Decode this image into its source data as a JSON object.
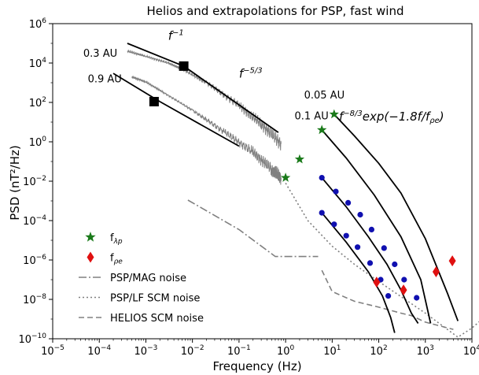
{
  "chart_data": {
    "type": "line",
    "title": "Helios and extrapolations for PSP, fast wind",
    "xlabel": "Frequency (Hz)",
    "ylabel": "PSD (nT²/Hz)",
    "x_scale": "log",
    "y_scale": "log",
    "xlim": [
      1e-05,
      10000.0
    ],
    "ylim": [
      1e-10,
      1000000.0
    ],
    "x_ticks": [
      {
        "value": 1e-05,
        "base": "10",
        "exp": "−5"
      },
      {
        "value": 0.0001,
        "base": "10",
        "exp": "−4"
      },
      {
        "value": 0.001,
        "base": "10",
        "exp": "−3"
      },
      {
        "value": 0.01,
        "base": "10",
        "exp": "−2"
      },
      {
        "value": 0.1,
        "base": "10",
        "exp": "−1"
      },
      {
        "value": 1.0,
        "base": "10",
        "exp": "0"
      },
      {
        "value": 10.0,
        "base": "10",
        "exp": "1"
      },
      {
        "value": 100.0,
        "base": "10",
        "exp": "2"
      },
      {
        "value": 1000.0,
        "base": "10",
        "exp": "3"
      },
      {
        "value": 10000.0,
        "base": "10",
        "exp": "4"
      }
    ],
    "y_ticks": [
      {
        "value": 1e-10,
        "base": "10",
        "exp": "−10"
      },
      {
        "value": 1e-08,
        "base": "10",
        "exp": "−8"
      },
      {
        "value": 1e-06,
        "base": "10",
        "exp": "−6"
      },
      {
        "value": 0.0001,
        "base": "10",
        "exp": "−4"
      },
      {
        "value": 0.01,
        "base": "10",
        "exp": "−2"
      },
      {
        "value": 1.0,
        "base": "10",
        "exp": "0"
      },
      {
        "value": 100.0,
        "base": "10",
        "exp": "2"
      },
      {
        "value": 10000.0,
        "base": "10",
        "exp": "4"
      },
      {
        "value": 1000000.0,
        "base": "10",
        "exp": "6"
      }
    ],
    "colors": {
      "helios": "#808080",
      "fit": "#000000",
      "f_lambda_p": "#1a7a1a",
      "f_rho_e": "#e01010",
      "blue_points": "#1010b0",
      "noise": "#808080"
    },
    "helios_spectra": [
      {
        "label": "0.3 AU",
        "points": [
          [
            0.0004,
            40000.0
          ],
          [
            0.001,
            22000.0
          ],
          [
            0.003,
            10000.0
          ],
          [
            0.006,
            5000.0
          ],
          [
            0.02,
            1000.0
          ],
          [
            0.1,
            70
          ],
          [
            0.3,
            8
          ],
          [
            0.8,
            0.8
          ]
        ]
      },
      {
        "label": "0.9 AU",
        "points": [
          [
            0.0005,
            2000.0
          ],
          [
            0.001,
            1100.0
          ],
          [
            0.0025,
            300
          ],
          [
            0.01,
            40
          ],
          [
            0.05,
            3
          ],
          [
            0.2,
            0.3
          ],
          [
            0.5,
            0.04
          ],
          [
            0.8,
            0.015
          ]
        ]
      }
    ],
    "power_law_fits": [
      {
        "points": [
          [
            0.0004,
            100000.0
          ],
          [
            0.0065,
            7000.0
          ]
        ]
      },
      {
        "points": [
          [
            0.0065,
            7000.0
          ],
          [
            0.7,
            3
          ]
        ]
      },
      {
        "points": [
          [
            0.0002,
            3000.0
          ],
          [
            0.002,
            110.0
          ]
        ]
      },
      {
        "points": [
          [
            0.002,
            110.0
          ],
          [
            0.1,
            0.6
          ]
        ]
      }
    ],
    "break_markers": [
      {
        "x": 0.0065,
        "y": 7000.0
      },
      {
        "x": 0.0015,
        "y": 110.0
      }
    ],
    "fit_labels": [
      {
        "base": "f",
        "exp": "−1",
        "x": 0.003,
        "y": 150000.0
      },
      {
        "base": "f",
        "exp": "−5/3",
        "x": 0.1,
        "y": 1800.0
      }
    ],
    "extrapolation_labels": [
      {
        "text": "0.05 AU",
        "x": 8.0,
        "y": 160
      },
      {
        "text": "0.1 AU",
        "x": 5.0,
        "y": 14
      }
    ],
    "exp_formula": {
      "base": "f",
      "exp": "−8/3",
      "rest": "exp(−1.8f/f",
      "sub": "ρe",
      "close": ")",
      "x": 14,
      "y": 12
    },
    "f_lambda_p_points": [
      [
        1.0,
        0.015
      ],
      [
        2.0,
        0.13
      ],
      [
        6.0,
        4
      ],
      [
        11.0,
        25
      ]
    ],
    "extrapolation_curves": [
      {
        "points": [
          [
            11.0,
            25
          ],
          [
            30,
            2
          ],
          [
            100,
            0.08
          ],
          [
            300,
            0.0025
          ],
          [
            1000,
            1.2e-05
          ],
          [
            3000,
            2e-08
          ],
          [
            5000,
            8e-10
          ]
        ]
      },
      {
        "points": [
          [
            6.0,
            4
          ],
          [
            20,
            0.15
          ],
          [
            80,
            0.002
          ],
          [
            300,
            1.5e-05
          ],
          [
            800,
            1e-07
          ],
          [
            1300,
            6e-10
          ]
        ]
      },
      {
        "points": [
          [
            6.0,
            0.015
          ],
          [
            20,
            0.0005
          ],
          [
            60,
            1.5e-05
          ],
          [
            150,
            6e-07
          ],
          [
            300,
            3e-08
          ],
          [
            500,
            2e-09
          ],
          [
            700,
            6e-10
          ]
        ]
      },
      {
        "points": [
          [
            6.0,
            0.00025
          ],
          [
            20,
            8e-06
          ],
          [
            60,
            2.5e-07
          ],
          [
            120,
            1.5e-08
          ],
          [
            180,
            1.2e-09
          ],
          [
            220,
            2e-10
          ]
        ]
      }
    ],
    "blue_points": [
      [
        6.0,
        0.015
      ],
      [
        12.0,
        0.003
      ],
      [
        22.0,
        0.0008
      ],
      [
        40.0,
        0.0002
      ],
      [
        70.0,
        3.5e-05
      ],
      [
        130.0,
        4e-06
      ],
      [
        220.0,
        6e-07
      ],
      [
        350.0,
        1e-07
      ],
      [
        650.0,
        1.2e-08
      ],
      [
        6.0,
        0.00025
      ],
      [
        11.0,
        6.5e-05
      ],
      [
        20.0,
        1.7e-05
      ],
      [
        35.0,
        4.5e-06
      ],
      [
        65.0,
        7e-07
      ],
      [
        110.0,
        1e-07
      ],
      [
        160.0,
        1.5e-08
      ]
    ],
    "f_rho_e_points": [
      [
        90,
        7.5e-08
      ],
      [
        1700.0,
        2.5e-07
      ],
      [
        3800.0,
        9e-07
      ],
      [
        340,
        3e-08
      ]
    ],
    "noise_curves": [
      {
        "name": "PSP/MAG noise",
        "dash": "10 3 2 3",
        "points": [
          [
            0.008,
            0.0011
          ],
          [
            0.1,
            3.5e-05
          ],
          [
            0.6,
            1.5e-06
          ],
          [
            1.0,
            1.5e-06
          ],
          [
            2.0,
            1.5e-06
          ],
          [
            5.0,
            1.5e-06
          ]
        ]
      },
      {
        "name": "PSP/LF SCM noise",
        "dash": "2 3",
        "points": [
          [
            1.0,
            0.008
          ],
          [
            3.0,
            0.0001
          ],
          [
            10.0,
            5e-06
          ],
          [
            30.0,
            6e-07
          ],
          [
            100.0,
            8e-08
          ],
          [
            1000.0,
            2e-09
          ],
          [
            5000.0,
            1.2e-10
          ],
          [
            10000.0,
            3.5e-10
          ],
          [
            15000.0,
            8e-10
          ]
        ]
      },
      {
        "name": "HELIOS SCM noise",
        "dash": "7 4",
        "points": [
          [
            6.0,
            3e-07
          ],
          [
            10.0,
            2.5e-08
          ],
          [
            30.0,
            8e-09
          ],
          [
            100.0,
            4e-09
          ],
          [
            300,
            2e-09
          ],
          [
            500,
            1.5e-09
          ],
          [
            1000.0,
            7e-10
          ],
          [
            4000.0,
            3e-10
          ]
        ]
      }
    ],
    "legend": {
      "placement": "lower-left",
      "entries": [
        {
          "kind": "star",
          "label": "f",
          "sub": "λp"
        },
        {
          "kind": "diamond",
          "label": "f",
          "sub": "ρe"
        },
        {
          "kind": "line",
          "label": "PSP/MAG noise"
        },
        {
          "kind": "line",
          "label": "PSP/LF SCM noise"
        },
        {
          "kind": "line",
          "label": "HELIOS SCM noise"
        }
      ]
    }
  }
}
